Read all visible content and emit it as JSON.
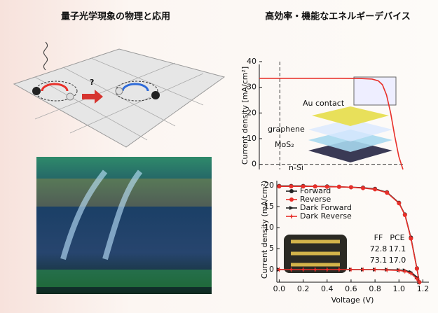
{
  "headings": [
    "量子光学現象の物理と応用",
    "高効率・機能なエネルギーデバイス"
  ],
  "illustration": {
    "label": "?"
  },
  "chart_data": [
    {
      "type": "line",
      "y_label": "Current density [mA/cm²]",
      "annotations": [
        "Au contact",
        "graphene",
        "MoS₂",
        "n-Si"
      ],
      "x": [
        -0.1,
        0.0,
        0.1,
        0.2,
        0.3,
        0.4,
        0.45,
        0.48,
        0.5,
        0.52,
        0.54,
        0.56,
        0.58,
        0.6
      ],
      "series": [
        {
          "color": "#e8302a",
          "values": [
            33.5,
            33.5,
            33.5,
            33.5,
            33.5,
            33.4,
            33.2,
            32.5,
            31,
            27,
            20,
            11,
            3,
            -2
          ]
        }
      ],
      "xlim": [
        -0.1,
        0.6
      ],
      "ylim": [
        -2,
        40
      ],
      "yticks": [
        0,
        10,
        20,
        30,
        40
      ]
    },
    {
      "type": "line",
      "x_label": "Voltage (V)",
      "y_label": "Current density (mA/cm²)",
      "x": [
        0,
        0.1,
        0.2,
        0.3,
        0.4,
        0.5,
        0.6,
        0.7,
        0.8,
        0.9,
        1.0,
        1.05,
        1.1,
        1.15,
        1.17
      ],
      "series": [
        {
          "name": "Forward",
          "color": "#222222",
          "marker": "circle",
          "values": [
            19.9,
            19.9,
            19.9,
            19.8,
            19.8,
            19.7,
            19.6,
            19.5,
            19.2,
            18.4,
            15.9,
            13.1,
            7.6,
            0.3,
            -3
          ]
        },
        {
          "name": "Reverse",
          "color": "#e8302a",
          "marker": "circle",
          "values": [
            19.8,
            19.8,
            19.8,
            19.8,
            19.7,
            19.7,
            19.6,
            19.4,
            19.1,
            18.3,
            15.8,
            13,
            7.4,
            0.2,
            -3
          ]
        },
        {
          "name": "Dark Forward",
          "color": "#222222",
          "marker": "arrow",
          "values": [
            0,
            0,
            0,
            0,
            0,
            0,
            0,
            0,
            0,
            0,
            -0.1,
            -0.2,
            -0.6,
            -1.8,
            -3
          ]
        },
        {
          "name": "Dark Reverse",
          "color": "#e8302a",
          "marker": "star",
          "values": [
            0,
            0,
            0,
            0,
            0,
            0,
            0,
            0,
            0,
            -0.1,
            -0.2,
            -0.4,
            -0.9,
            -2.2,
            -3
          ]
        }
      ],
      "table": {
        "headers": [
          "FF",
          "PCE"
        ],
        "rows": [
          [
            "72.8",
            "17.1"
          ],
          [
            "73.1",
            "17.0"
          ]
        ]
      },
      "xlim": [
        -0.02,
        1.25
      ],
      "xticks": [
        {
          "value": 0,
          "label": "0.0"
        },
        0.2,
        0.4,
        0.6,
        0.8,
        {
          "value": 1,
          "label": "1.0"
        },
        1.2
      ],
      "ylim": [
        -3,
        22
      ],
      "yticks": [
        0,
        5,
        10,
        15,
        20
      ]
    }
  ]
}
